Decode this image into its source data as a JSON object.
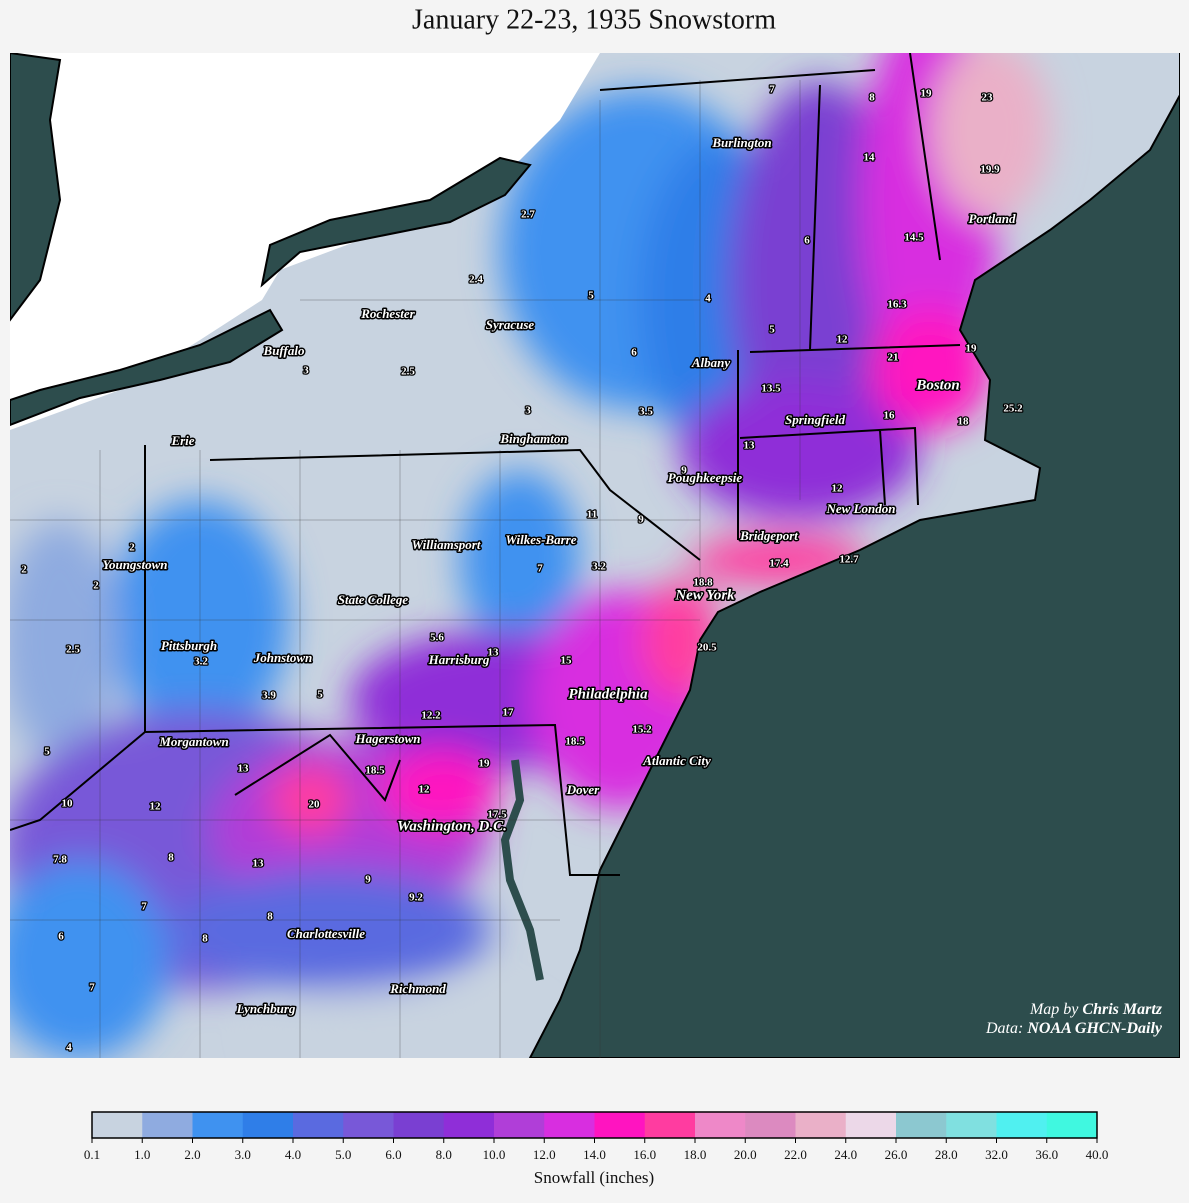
{
  "title": "January 22-23, 1935 Snowstorm",
  "cities": [
    "Burlington",
    "Portland",
    "Rochester",
    "Syracuse",
    "Buffalo",
    "Albany",
    "Boston",
    "Springfield",
    "Erie",
    "Binghamton",
    "Poughkeepsie",
    "New London",
    "Bridgeport",
    "Williamsport",
    "Wilkes-Barre",
    "Youngstown",
    "New York",
    "State College",
    "Pittsburgh",
    "Johnstown",
    "Harrisburg",
    "Philadelphia",
    "Morgantown",
    "Hagerstown",
    "Atlantic City",
    "Dover",
    "Washington, D.C.",
    "Charlottesville",
    "Richmond",
    "Lynchburg"
  ],
  "observations": [
    7,
    8,
    19,
    23,
    14,
    19.9,
    2.7,
    6,
    14.5,
    2.4,
    5,
    4,
    16.3,
    5,
    12,
    19,
    6,
    21,
    3,
    2.5,
    13.5,
    3,
    3.5,
    16,
    18,
    25.2,
    13,
    9,
    12,
    11,
    9,
    2,
    7,
    3.2,
    17.4,
    12.7,
    18.8,
    2,
    2,
    5.6,
    20.5,
    2.5,
    3.2,
    13,
    15,
    3.9,
    5,
    12.2,
    17,
    15.2,
    18.5,
    5,
    13,
    18.5,
    19,
    12,
    10,
    12,
    20,
    17.5,
    7.8,
    8,
    13,
    9,
    9.2,
    7,
    8,
    6,
    8,
    7,
    4
  ],
  "credit": {
    "by_prefix": "Map by ",
    "by_name": "Chris Martz",
    "data_prefix": "Data: ",
    "data_name": "NOAA GHCN-Daily"
  },
  "legend": {
    "title": "Snowfall (inches)",
    "colors": [
      "#c8d3e0",
      "#8fabe0",
      "#3f92f0",
      "#2f7ee8",
      "#5a6ae0",
      "#7858d8",
      "#7a3fd2",
      "#8f2ed8",
      "#b03ed8",
      "#d82ee0",
      "#ff14c0",
      "#ff3ca0",
      "#ee88c8",
      "#dc8ac0",
      "#eab0c8",
      "#ecd8e8",
      "#8cc8d0",
      "#80e0e0",
      "#50f0f0",
      "#40f8e0"
    ],
    "ticks": [
      0.1,
      {
        "value": 1,
        "label": "1.0"
      },
      {
        "value": 2,
        "label": "2.0"
      },
      {
        "value": 3,
        "label": "3.0"
      },
      {
        "value": 4,
        "label": "4.0"
      },
      {
        "value": 5,
        "label": "5.0"
      },
      {
        "value": 6,
        "label": "6.0"
      },
      {
        "value": 8,
        "label": "8.0"
      },
      {
        "value": 10,
        "label": "10.0"
      },
      {
        "value": 12,
        "label": "12.0"
      },
      {
        "value": 14,
        "label": "14.0"
      },
      {
        "value": 16,
        "label": "16.0"
      },
      {
        "value": 18,
        "label": "18.0"
      },
      {
        "value": 20,
        "label": "20.0"
      },
      {
        "value": 22,
        "label": "22.0"
      },
      {
        "value": 24,
        "label": "24.0"
      },
      {
        "value": 26,
        "label": "26.0"
      },
      {
        "value": 28,
        "label": "28.0"
      },
      {
        "value": 32,
        "label": "32.0"
      },
      {
        "value": 36,
        "label": "36.0"
      },
      {
        "value": 40,
        "label": "40.0"
      }
    ]
  }
}
